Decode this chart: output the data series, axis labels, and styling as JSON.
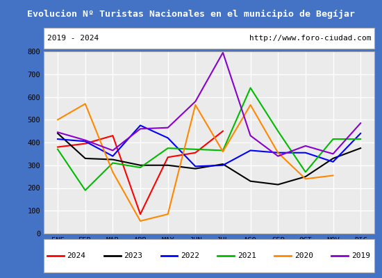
{
  "title": "Evolucion Nº Turistas Nacionales en el municipio de Begíjar",
  "subtitle_left": "2019 - 2024",
  "subtitle_right": "http://www.foro-ciudad.com",
  "x_labels": [
    "ENE",
    "FEB",
    "MAR",
    "ABR",
    "MAY",
    "JUN",
    "JUL",
    "AGO",
    "SEP",
    "OCT",
    "NOV",
    "DIC"
  ],
  "ylim": [
    0,
    800
  ],
  "yticks": [
    0,
    100,
    200,
    300,
    400,
    500,
    600,
    700,
    800
  ],
  "series": {
    "2024": {
      "color": "#ff0000",
      "data": [
        380,
        395,
        430,
        85,
        335,
        355,
        450,
        null,
        null,
        null,
        null,
        null
      ]
    },
    "2023": {
      "color": "#000000",
      "data": [
        440,
        330,
        325,
        300,
        300,
        285,
        305,
        230,
        215,
        250,
        330,
        375
      ]
    },
    "2022": {
      "color": "#0000ff",
      "data": [
        415,
        405,
        340,
        475,
        420,
        295,
        300,
        365,
        355,
        355,
        315,
        440
      ]
    },
    "2021": {
      "color": "#00bb00",
      "data": [
        370,
        190,
        310,
        290,
        375,
        370,
        365,
        640,
        450,
        270,
        415,
        415
      ]
    },
    "2020": {
      "color": "#ff8800",
      "data": [
        500,
        570,
        270,
        55,
        85,
        565,
        360,
        565,
        355,
        240,
        255,
        null
      ]
    },
    "2019": {
      "color": "#8800cc",
      "data": [
        445,
        410,
        365,
        460,
        465,
        580,
        795,
        430,
        340,
        385,
        350,
        485
      ]
    }
  },
  "legend_order": [
    "2024",
    "2023",
    "2022",
    "2021",
    "2020",
    "2019"
  ],
  "title_bg": "#4472c4",
  "title_color": "#ffffff",
  "plot_bg": "#ebebeb",
  "grid_color": "#ffffff",
  "border_color": "#aaaaaa",
  "fig_bg": "#4472c4"
}
